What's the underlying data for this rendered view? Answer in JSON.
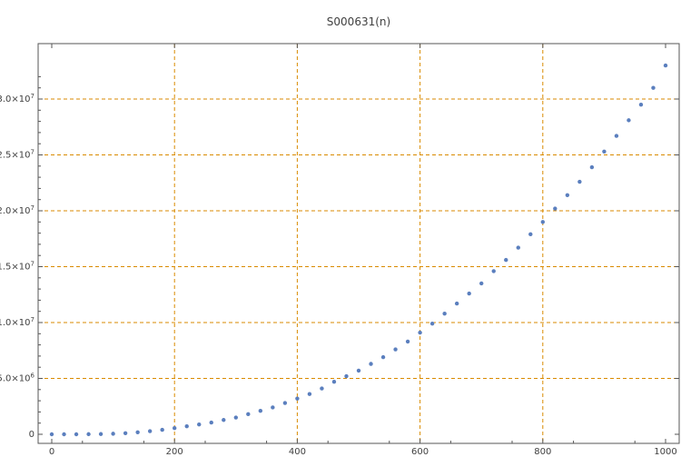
{
  "chart_data": {
    "type": "scatter",
    "title": "S000631(n)",
    "xlabel": "",
    "ylabel": "",
    "xlim": [
      0,
      1000
    ],
    "ylim": [
      0,
      33000000
    ],
    "grid": true,
    "legend": "none",
    "colors": {
      "points": "#5b7fbe",
      "grid": "#d98a00",
      "axis": "#555555",
      "text": "#404040"
    },
    "x_ticks": [
      {
        "value": 0,
        "label": "0"
      },
      {
        "value": 200,
        "label": "200"
      },
      {
        "value": 400,
        "label": "400"
      },
      {
        "value": 600,
        "label": "600"
      },
      {
        "value": 800,
        "label": "800"
      },
      {
        "value": 1000,
        "label": "1000"
      }
    ],
    "y_ticks": [
      {
        "value": 0,
        "mantissa": "0",
        "exp": ""
      },
      {
        "value": 5000000,
        "mantissa": "5.0×10",
        "exp": "6"
      },
      {
        "value": 10000000,
        "mantissa": "1.0×10",
        "exp": "7"
      },
      {
        "value": 15000000,
        "mantissa": "1.5×10",
        "exp": "7"
      },
      {
        "value": 20000000,
        "mantissa": "2.0×10",
        "exp": "7"
      },
      {
        "value": 25000000,
        "mantissa": "2.5×10",
        "exp": "7"
      },
      {
        "value": 30000000,
        "mantissa": "3.0×10",
        "exp": "7"
      }
    ],
    "series": [
      {
        "x": [
          0,
          20,
          40,
          60,
          80,
          100,
          120,
          140,
          160,
          180,
          200,
          220,
          240,
          260,
          280,
          300,
          320,
          340,
          360,
          380,
          400,
          420,
          440,
          460,
          480,
          500,
          520,
          540,
          560,
          580,
          600,
          620,
          640,
          660,
          680,
          700,
          720,
          740,
          760,
          780,
          800,
          820,
          840,
          860,
          880,
          900,
          920,
          940,
          960,
          980,
          1000
        ],
        "y": [
          0,
          0,
          0,
          10000,
          20000,
          50000,
          100000,
          180000,
          280000,
          400000,
          550000,
          720000,
          880000,
          1050000,
          1280000,
          1500000,
          1800000,
          2100000,
          2400000,
          2800000,
          3200000,
          3600000,
          4100000,
          4700000,
          5200000,
          5700000,
          6300000,
          6900000,
          7600000,
          8300000,
          9100000,
          9900000,
          10800000,
          11700000,
          12600000,
          13500000,
          14600000,
          15600000,
          16700000,
          17900000,
          19000000,
          20200000,
          21400000,
          22600000,
          23900000,
          25300000,
          26700000,
          28100000,
          29500000,
          31000000,
          33000000
        ]
      }
    ]
  }
}
